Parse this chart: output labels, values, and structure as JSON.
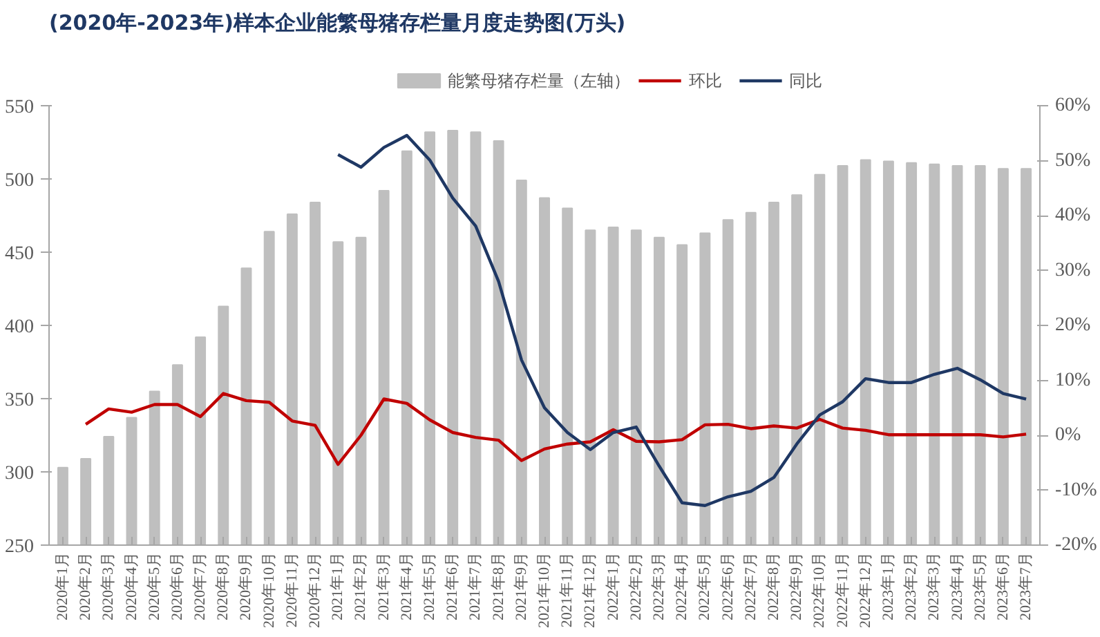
{
  "chart_data": {
    "type": "bar",
    "title": "(2020年-2023年)样本企业能繁母猪存栏量月度走势图(万头)",
    "categories": [
      "2020年1月",
      "2020年2月",
      "2020年3月",
      "2020年4月",
      "2020年5月",
      "2020年6月",
      "2020年7月",
      "2020年8月",
      "2020年9月",
      "2020年10月",
      "2020年11月",
      "2020年12月",
      "2021年1月",
      "2021年2月",
      "2021年3月",
      "2021年4月",
      "2021年5月",
      "2021年6月",
      "2021年7月",
      "2021年8月",
      "2021年9月",
      "2021年10月",
      "2021年11月",
      "2021年12月",
      "2022年1月",
      "2022年2月",
      "2022年3月",
      "2022年4月",
      "2022年5月",
      "2022年6月",
      "2022年7月",
      "2022年8月",
      "2022年9月",
      "2022年10月",
      "2022年11月",
      "2022年12月",
      "2023年1月",
      "2023年2月",
      "2023年3月",
      "2023年4月",
      "2023年5月",
      "2023年6月",
      "2023年7月"
    ],
    "series": [
      {
        "name": "能繁母猪存栏量（左轴）",
        "color": "#bfbfbf",
        "values": [
          303,
          309,
          324,
          337,
          355,
          373,
          392,
          413,
          439,
          464,
          476,
          484,
          457,
          460,
          492,
          519,
          532,
          533,
          532,
          526,
          499,
          487,
          480,
          465,
          467,
          465,
          460,
          455,
          463,
          472,
          477,
          484,
          489,
          503,
          509,
          513,
          512,
          511,
          510,
          509,
          509,
          507,
          507
        ]
      },
      {
        "name": "环比",
        "type": "line",
        "axis": "y2",
        "color": "#c00000",
        "values": [
          null,
          2.0,
          4.8,
          4.2,
          5.6,
          5.6,
          3.4,
          7.6,
          6.3,
          6.0,
          2.6,
          1.8,
          -5.3,
          0.0,
          6.6,
          5.8,
          2.8,
          0.5,
          -0.4,
          -0.9,
          -4.6,
          -2.5,
          -1.6,
          -1.2,
          1.0,
          -1.1,
          -1.2,
          -0.8,
          1.9,
          2.0,
          1.2,
          1.7,
          1.3,
          2.9,
          1.3,
          0.9,
          0.1,
          0.1,
          0.1,
          0.1,
          0.1,
          -0.3,
          0.2
        ]
      },
      {
        "name": "同比",
        "type": "line",
        "axis": "y2",
        "color": "#1f3864",
        "values": [
          null,
          null,
          null,
          null,
          null,
          null,
          null,
          null,
          null,
          null,
          null,
          null,
          51.1,
          48.8,
          52.4,
          54.6,
          50.1,
          43.2,
          38.1,
          28.0,
          13.7,
          5.0,
          0.5,
          -2.6,
          0.5,
          1.5,
          -5.6,
          -12.3,
          -12.8,
          -11.2,
          -10.2,
          -7.7,
          -1.6,
          3.7,
          6.1,
          10.3,
          9.6,
          9.6,
          11.1,
          12.2,
          10.1,
          7.6,
          6.6
        ]
      }
    ],
    "ylim": [
      250,
      550
    ],
    "yticks": [
      250,
      300,
      350,
      400,
      450,
      500,
      550
    ],
    "y2lim": [
      -20,
      60
    ],
    "y2ticks": [
      {
        "value": -20,
        "label": "-20%"
      },
      {
        "value": -10,
        "label": "-10%"
      },
      {
        "value": 0,
        "label": "0%"
      },
      {
        "value": 10,
        "label": "10%"
      },
      {
        "value": 20,
        "label": "20%"
      },
      {
        "value": 30,
        "label": "30%"
      },
      {
        "value": 40,
        "label": "40%"
      },
      {
        "value": 50,
        "label": "50%"
      },
      {
        "value": 60,
        "label": "60%"
      }
    ],
    "legend": "top",
    "grid": false
  }
}
